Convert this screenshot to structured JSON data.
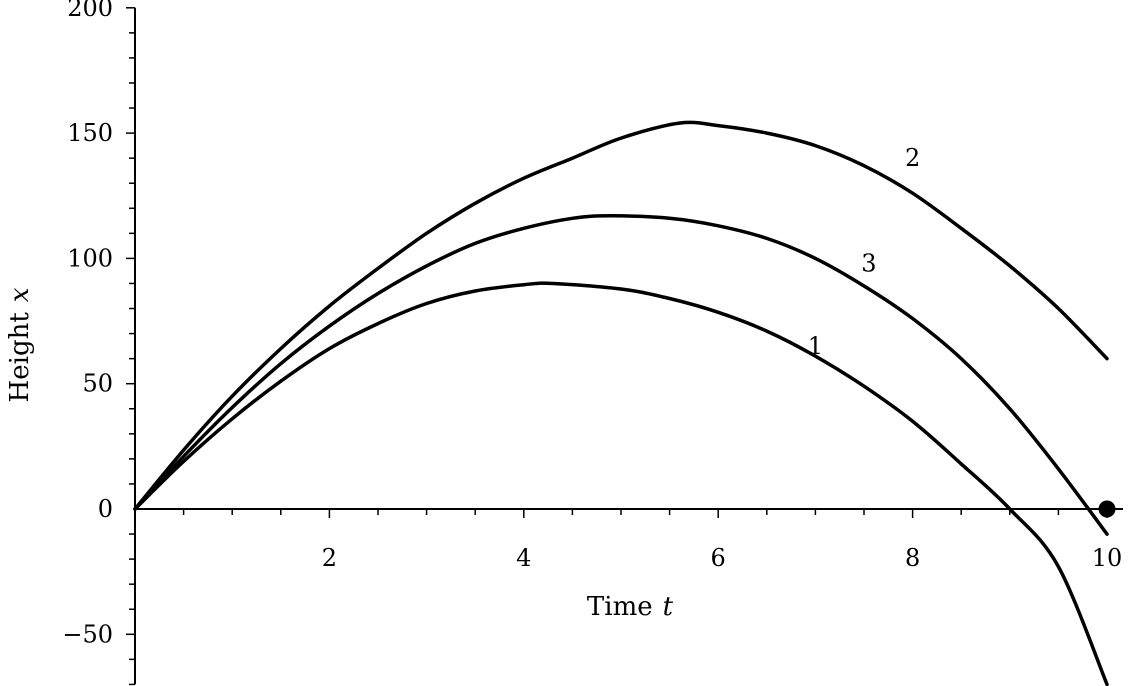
{
  "chart_data": {
    "type": "line",
    "xlabel": "Time",
    "xlabel_var": "t",
    "ylabel": "Height",
    "ylabel_var": "x",
    "xlim": [
      0,
      10
    ],
    "ylim": [
      -70,
      200
    ],
    "x_ticks": [
      2,
      4,
      6,
      8,
      10
    ],
    "y_ticks": [
      -50,
      0,
      50,
      100,
      150,
      200
    ],
    "x_tick_labels": [
      "2",
      "4",
      "6",
      "8",
      "10"
    ],
    "y_tick_labels": [
      "−50",
      "0",
      "50",
      "100",
      "150",
      "200"
    ],
    "grid": false,
    "series": [
      {
        "name": "1",
        "x": [
          0,
          0.5,
          1,
          1.5,
          2,
          2.5,
          3,
          3.5,
          4,
          4.3,
          5,
          5.5,
          6,
          6.5,
          7,
          7.5,
          8,
          8.5,
          9,
          9.5,
          10
        ],
        "y": [
          0,
          19,
          36,
          51,
          64,
          74,
          82,
          87,
          89.5,
          90,
          87.8,
          84,
          78.5,
          71,
          61,
          49,
          35,
          18,
          0,
          -23,
          -70
        ]
      },
      {
        "name": "2",
        "x": [
          0,
          0.5,
          1,
          1.5,
          2,
          2.5,
          3,
          3.5,
          4,
          4.5,
          5,
          5.6,
          6,
          6.5,
          7,
          7.5,
          8,
          8.5,
          9,
          9.5,
          10
        ],
        "y": [
          0,
          23.5,
          45,
          64,
          81,
          96,
          110,
          122,
          132,
          140,
          148,
          154,
          153,
          150,
          145,
          137,
          126,
          112,
          97,
          80,
          60
        ]
      },
      {
        "name": "3",
        "x": [
          0,
          0.5,
          1,
          1.5,
          2,
          2.5,
          3,
          3.5,
          4,
          4.5,
          4.9,
          5.5,
          6,
          6.5,
          7,
          7.5,
          8,
          8.5,
          9,
          9.5,
          10
        ],
        "y": [
          0,
          21,
          40.5,
          58,
          73,
          86,
          97,
          106,
          112,
          116,
          117,
          116,
          113,
          108,
          100,
          89,
          76,
          60,
          40,
          16,
          -10
        ]
      }
    ],
    "curve_labels": [
      {
        "text": "1",
        "x": 7.0,
        "y": 65
      },
      {
        "text": "2",
        "x": 8.0,
        "y": 140
      },
      {
        "text": "3",
        "x": 7.55,
        "y": 98
      }
    ],
    "marker": {
      "x": 10,
      "y": 0
    }
  }
}
